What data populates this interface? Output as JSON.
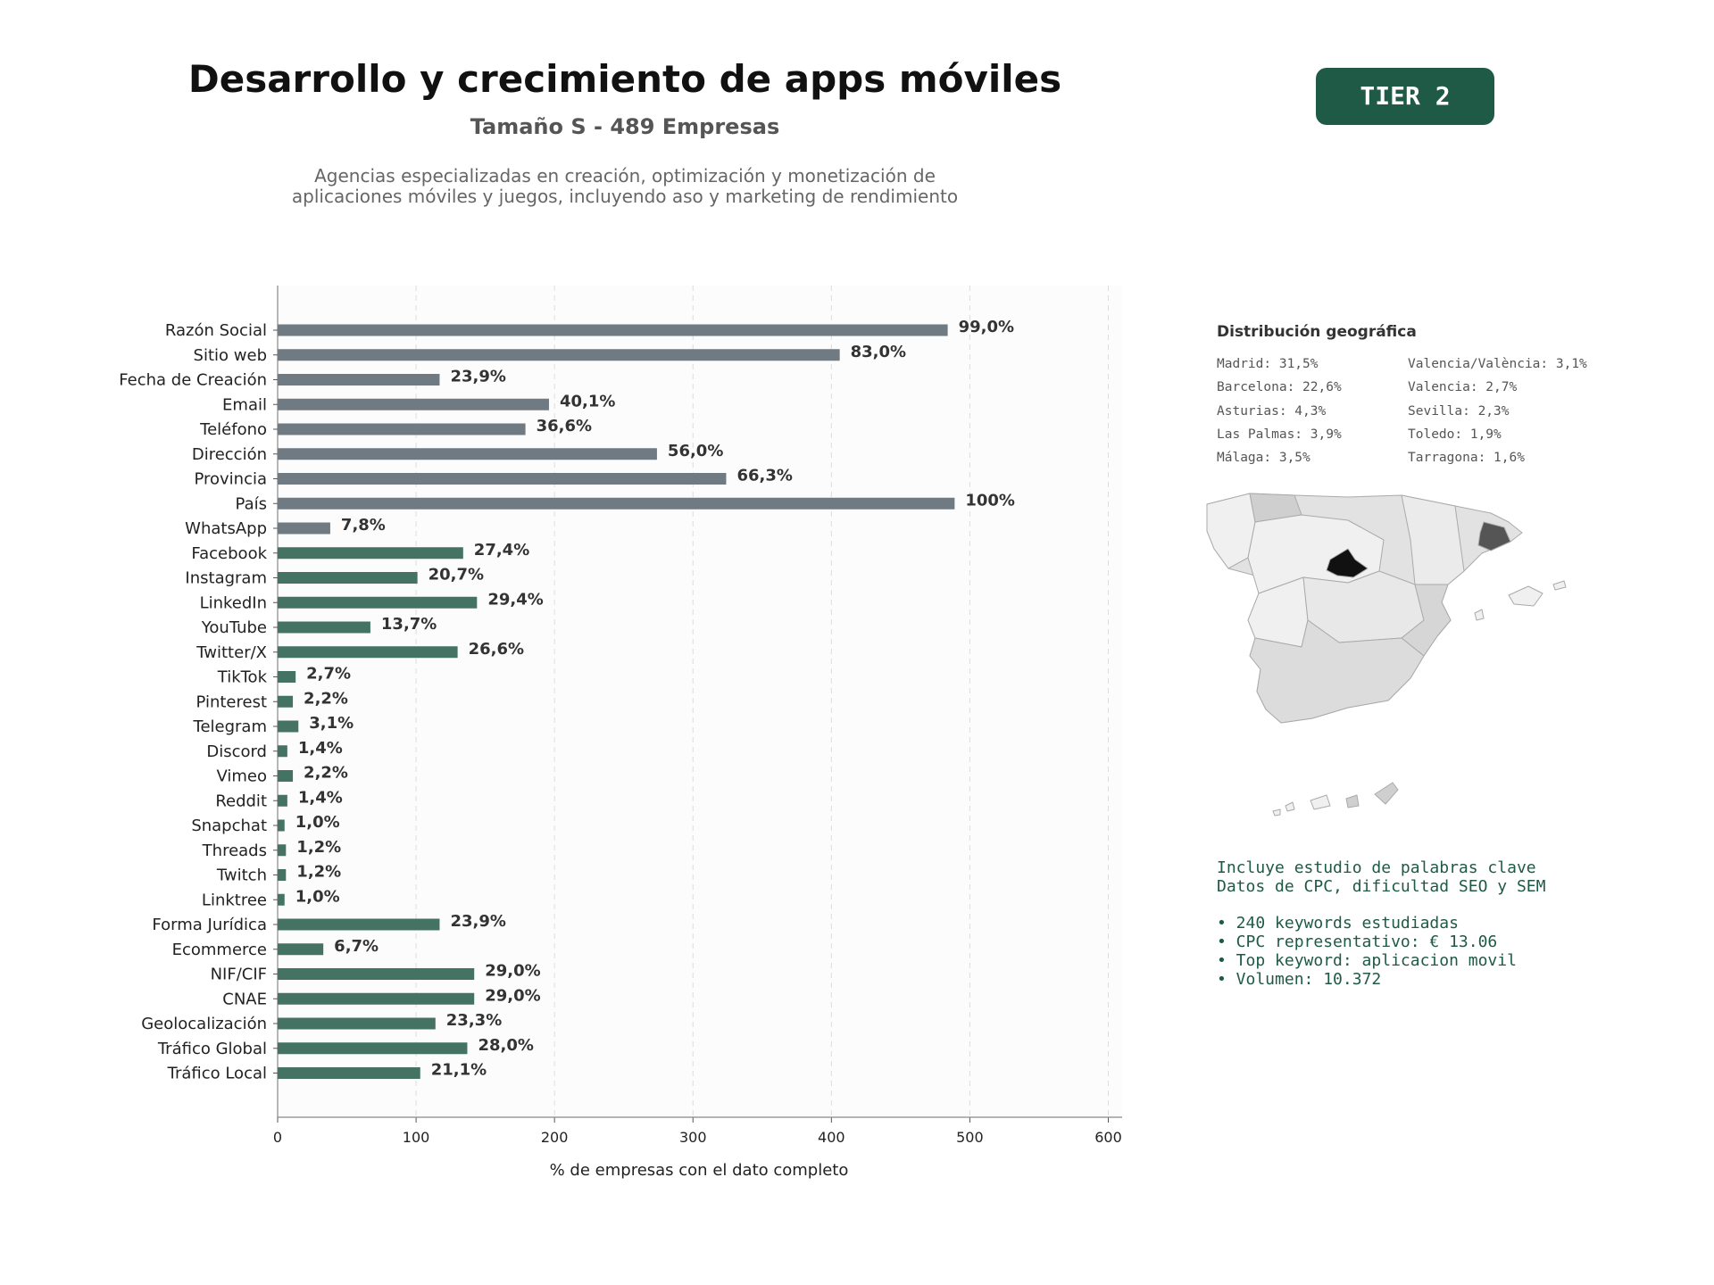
{
  "header": {
    "title": "Desarrollo y crecimiento de apps móviles",
    "subtitle": "Tamaño S - 489 Empresas",
    "description": "Agencias especializadas en creación, optimización y monetización de aplicaciones móviles y juegos, incluyendo aso y marketing de rendimiento",
    "tier_label": "TIER 2"
  },
  "chart_data": {
    "type": "bar",
    "orientation": "horizontal",
    "xlabel": "% de empresas con el dato completo",
    "xlim": [
      0,
      610
    ],
    "xticks": [
      0,
      100,
      200,
      300,
      400,
      500,
      600
    ],
    "grid": "vertical dashed",
    "colors": {
      "basic": "#6f7a83",
      "extended": "#447363"
    },
    "categories": [
      "Razón Social",
      "Sitio web",
      "Fecha de Creación",
      "Email",
      "Teléfono",
      "Dirección",
      "Provincia",
      "País",
      "WhatsApp",
      "Facebook",
      "Instagram",
      "LinkedIn",
      "YouTube",
      "Twitter/X",
      "TikTok",
      "Pinterest",
      "Telegram",
      "Discord",
      "Vimeo",
      "Reddit",
      "Snapchat",
      "Threads",
      "Twitch",
      "Linktree",
      "Forma Jurídica",
      "Ecommerce",
      "NIF/CIF",
      "CNAE",
      "Geolocalización",
      "Tráfico Global",
      "Tráfico Local"
    ],
    "values": [
      484,
      406,
      117,
      196,
      179,
      274,
      324,
      489,
      38,
      134,
      101,
      144,
      67,
      130,
      13,
      11,
      15,
      7,
      11,
      7,
      5,
      6,
      6,
      5,
      117,
      33,
      142,
      142,
      114,
      137,
      103
    ],
    "labels": [
      "99,0%",
      "83,0%",
      "23,9%",
      "40,1%",
      "36,6%",
      "56,0%",
      "66,3%",
      "100%",
      "7,8%",
      "27,4%",
      "20,7%",
      "29,4%",
      "13,7%",
      "26,6%",
      "2,7%",
      "2,2%",
      "3,1%",
      "1,4%",
      "2,2%",
      "1,4%",
      "1,0%",
      "1,2%",
      "1,2%",
      "1,0%",
      "23,9%",
      "6,7%",
      "29,0%",
      "29,0%",
      "23,3%",
      "28,0%",
      "21,1%"
    ],
    "group": [
      "basic",
      "basic",
      "basic",
      "basic",
      "basic",
      "basic",
      "basic",
      "basic",
      "basic",
      "extended",
      "extended",
      "extended",
      "extended",
      "extended",
      "extended",
      "extended",
      "extended",
      "extended",
      "extended",
      "extended",
      "extended",
      "extended",
      "extended",
      "extended",
      "extended",
      "extended",
      "extended",
      "extended",
      "extended",
      "extended",
      "extended"
    ]
  },
  "geo": {
    "title": "Distribución geográfica",
    "left": [
      "Madrid: 31,5%",
      "Barcelona: 22,6%",
      "Asturias: 4,3%",
      "Las Palmas: 3,9%",
      "Málaga: 3,5%"
    ],
    "right": [
      "Valencia/València: 3,1%",
      "Valencia: 2,7%",
      "Sevilla: 2,3%",
      "Toledo: 1,9%",
      "Tarragona: 1,6%"
    ],
    "map_colors": {
      "madrid": "#111111",
      "barcelona": "#555555",
      "base": "#e2e2e2",
      "light": "#f0f0f0",
      "mid": "#cfcfcf"
    }
  },
  "keywords": {
    "line1": "Incluye estudio de palabras clave",
    "line2": "Datos de CPC, dificultad SEO y SEM",
    "bullets": [
      "• 240 keywords estudiadas",
      "• CPC representativo: € 13.06",
      "• Top keyword: aplicacion movil",
      "• Volumen: 10.372"
    ]
  }
}
